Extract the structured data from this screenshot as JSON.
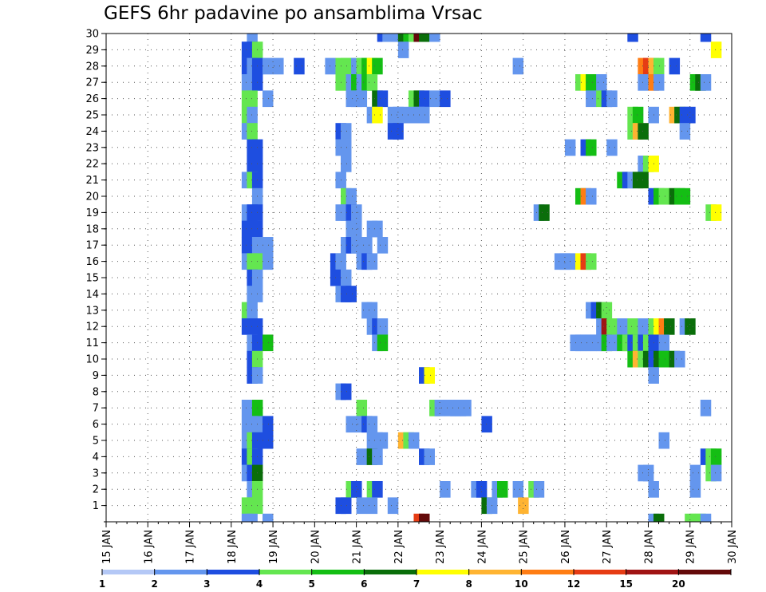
{
  "chart_data": {
    "type": "heatmap",
    "title": "GEFS 6hr padavine po ansamblima Vrsac",
    "xlabel": "",
    "ylabel": "",
    "x_start": "15 JAN",
    "x_end": "30 JAN",
    "x_step": "6 hours",
    "x_tick_labels": [
      "15 JAN",
      "16 JAN",
      "17 JAN",
      "18 JAN",
      "19 JAN",
      "20 JAN",
      "21 JAN",
      "22 JAN",
      "23 JAN",
      "24 JAN",
      "25 JAN",
      "26 JAN",
      "27 JAN",
      "28 JAN",
      "29 JAN",
      "30 JAN"
    ],
    "y_members": [
      0,
      1,
      2,
      3,
      4,
      5,
      6,
      7,
      8,
      9,
      10,
      11,
      12,
      13,
      14,
      15,
      16,
      17,
      18,
      19,
      20,
      21,
      22,
      23,
      24,
      25,
      26,
      27,
      28,
      29,
      30
    ],
    "y_tick_labels": [
      "1",
      "2",
      "3",
      "4",
      "5",
      "6",
      "7",
      "8",
      "9",
      "10",
      "11",
      "12",
      "13",
      "14",
      "15",
      "16",
      "17",
      "18",
      "19",
      "20",
      "21",
      "22",
      "23",
      "24",
      "25",
      "26",
      "27",
      "28",
      "29",
      "30"
    ],
    "grid": true,
    "colorbar": {
      "placement": "bottom",
      "levels": [
        1,
        2,
        3,
        4,
        5,
        6,
        7,
        8,
        10,
        12,
        15,
        20
      ],
      "tick_labels": [
        "1",
        "2",
        "3",
        "4",
        "5",
        "6",
        "7",
        "8",
        "10",
        "12",
        "15",
        "20"
      ],
      "colors": [
        "#b4c8f6",
        "#6496ee",
        "#1e4ee0",
        "#64e650",
        "#14be14",
        "#0a6e0a",
        "#ffff00",
        "#ffb432",
        "#ff7d14",
        "#e63c14",
        "#a01414",
        "#640a0a"
      ]
    },
    "value_unit": "mm / 6hr",
    "cells": [
      [
        30,
        13.5,
        1
      ],
      [
        30,
        26,
        2
      ],
      [
        30,
        26.5,
        1
      ],
      [
        30,
        27,
        1
      ],
      [
        30,
        28,
        5
      ],
      [
        30,
        28.5,
        4
      ],
      [
        30,
        29,
        3
      ],
      [
        30,
        29.5,
        11
      ],
      [
        30,
        30,
        5
      ],
      [
        30,
        31,
        1
      ],
      [
        30,
        50,
        2
      ],
      [
        30,
        57,
        2
      ],
      [
        29,
        13,
        2
      ],
      [
        29,
        13.5,
        2
      ],
      [
        29,
        14,
        3
      ],
      [
        29,
        28,
        1
      ],
      [
        29,
        58,
        6
      ],
      [
        28,
        13,
        2
      ],
      [
        28,
        13.5,
        1
      ],
      [
        28,
        14,
        2
      ],
      [
        28,
        15,
        1
      ],
      [
        28,
        16,
        1
      ],
      [
        28,
        18,
        2
      ],
      [
        28,
        21,
        1
      ],
      [
        28,
        22,
        3
      ],
      [
        28,
        22.5,
        3
      ],
      [
        28,
        23,
        3
      ],
      [
        28,
        23.5,
        1
      ],
      [
        28,
        24,
        3
      ],
      [
        28,
        24.5,
        4
      ],
      [
        28,
        25,
        6
      ],
      [
        28,
        25.5,
        4
      ],
      [
        28,
        39,
        1
      ],
      [
        28,
        51,
        8
      ],
      [
        28,
        51.5,
        9
      ],
      [
        28,
        52,
        7
      ],
      [
        28,
        52.5,
        3
      ],
      [
        28,
        54,
        2
      ],
      [
        27,
        13,
        1
      ],
      [
        27,
        13.5,
        1
      ],
      [
        27,
        14,
        2
      ],
      [
        27,
        22,
        3
      ],
      [
        27,
        23,
        1
      ],
      [
        27,
        23.5,
        4
      ],
      [
        27,
        24,
        1
      ],
      [
        27,
        24.5,
        4
      ],
      [
        27,
        25,
        3
      ],
      [
        27,
        45,
        3
      ],
      [
        27,
        45.5,
        6
      ],
      [
        27,
        46,
        4
      ],
      [
        27,
        47,
        1
      ],
      [
        27,
        51,
        1
      ],
      [
        27,
        52,
        8
      ],
      [
        27,
        52.5,
        1
      ],
      [
        27,
        56,
        4
      ],
      [
        27,
        56.5,
        5
      ],
      [
        27,
        57,
        1
      ],
      [
        26,
        13,
        3
      ],
      [
        26,
        13.5,
        3
      ],
      [
        26,
        15,
        1
      ],
      [
        26,
        23,
        1
      ],
      [
        26,
        23.5,
        1
      ],
      [
        26,
        24,
        1
      ],
      [
        26,
        25.5,
        5
      ],
      [
        26,
        26,
        2
      ],
      [
        26,
        29,
        3
      ],
      [
        26,
        29.5,
        5
      ],
      [
        26,
        30,
        2
      ],
      [
        26,
        31,
        1
      ],
      [
        26,
        32,
        2
      ],
      [
        26,
        46,
        1
      ],
      [
        26,
        47,
        3
      ],
      [
        26,
        47.5,
        2
      ],
      [
        26,
        48,
        1
      ],
      [
        25,
        13,
        3
      ],
      [
        25,
        13.5,
        1
      ],
      [
        25,
        25,
        1
      ],
      [
        25,
        25.5,
        6
      ],
      [
        25,
        27,
        1
      ],
      [
        25,
        27.5,
        1
      ],
      [
        25,
        28,
        1
      ],
      [
        25,
        29,
        1
      ],
      [
        25,
        29.5,
        1
      ],
      [
        25,
        30,
        1
      ],
      [
        25,
        50,
        3
      ],
      [
        25,
        50.5,
        4
      ],
      [
        25,
        52,
        1
      ],
      [
        25,
        54,
        7
      ],
      [
        25,
        54.5,
        5
      ],
      [
        25,
        55,
        2
      ],
      [
        25,
        55.5,
        2
      ],
      [
        24,
        13,
        1
      ],
      [
        24,
        13.5,
        3
      ],
      [
        24,
        22,
        2
      ],
      [
        24,
        22.5,
        1
      ],
      [
        24,
        27,
        2
      ],
      [
        24,
        27.5,
        2
      ],
      [
        24,
        50,
        3
      ],
      [
        24,
        50.5,
        7
      ],
      [
        24,
        51,
        5
      ],
      [
        24,
        55,
        1
      ],
      [
        23,
        13.5,
        2
      ],
      [
        23,
        14,
        2
      ],
      [
        23,
        22,
        1
      ],
      [
        23,
        22.5,
        1
      ],
      [
        23,
        44,
        1
      ],
      [
        23,
        45.5,
        2
      ],
      [
        23,
        46,
        4
      ],
      [
        23,
        48,
        1
      ],
      [
        22,
        13.5,
        2
      ],
      [
        22,
        14,
        2
      ],
      [
        22,
        22.5,
        1
      ],
      [
        22,
        51,
        1
      ],
      [
        22,
        51.5,
        3
      ],
      [
        22,
        52,
        6
      ],
      [
        21,
        13,
        1
      ],
      [
        21,
        13.5,
        3
      ],
      [
        21,
        14,
        2
      ],
      [
        21,
        22,
        1
      ],
      [
        21,
        49,
        4
      ],
      [
        21,
        49.5,
        2
      ],
      [
        21,
        50,
        1
      ],
      [
        21,
        50.5,
        5
      ],
      [
        21,
        51,
        5
      ],
      [
        20,
        14,
        1
      ],
      [
        20,
        22.5,
        3
      ],
      [
        20,
        23,
        1
      ],
      [
        20,
        45,
        4
      ],
      [
        20,
        45.5,
        8
      ],
      [
        20,
        46,
        1
      ],
      [
        20,
        52,
        2
      ],
      [
        20,
        52.5,
        4
      ],
      [
        20,
        53,
        3
      ],
      [
        20,
        53.5,
        3
      ],
      [
        20,
        54,
        5
      ],
      [
        20,
        54.5,
        4
      ],
      [
        20,
        55,
        4
      ],
      [
        19,
        13,
        1
      ],
      [
        19,
        13.5,
        2
      ],
      [
        19,
        14,
        2
      ],
      [
        19,
        22,
        1
      ],
      [
        19,
        22.5,
        1
      ],
      [
        19,
        23,
        2
      ],
      [
        19,
        23.5,
        1
      ],
      [
        19,
        41,
        1
      ],
      [
        19,
        41.5,
        5
      ],
      [
        19,
        57.5,
        3
      ],
      [
        19,
        58,
        6
      ],
      [
        18,
        13,
        2
      ],
      [
        18,
        13.5,
        2
      ],
      [
        18,
        14,
        2
      ],
      [
        18,
        23,
        1
      ],
      [
        18,
        23.5,
        1
      ],
      [
        18,
        25,
        1
      ],
      [
        18,
        25.5,
        1
      ],
      [
        17,
        13,
        2
      ],
      [
        17,
        13.5,
        2
      ],
      [
        17,
        14,
        1
      ],
      [
        17,
        15,
        1
      ],
      [
        17,
        22.5,
        1
      ],
      [
        17,
        23,
        2
      ],
      [
        17,
        23.5,
        1
      ],
      [
        17,
        24,
        1
      ],
      [
        17,
        24.5,
        1
      ],
      [
        17,
        26,
        1
      ],
      [
        16,
        13,
        1
      ],
      [
        16,
        13.5,
        3
      ],
      [
        16,
        14,
        3
      ],
      [
        16,
        15,
        1
      ],
      [
        16,
        21.5,
        2
      ],
      [
        16,
        22,
        1
      ],
      [
        16,
        24,
        1
      ],
      [
        16,
        24.5,
        2
      ],
      [
        16,
        25,
        1
      ],
      [
        16,
        43,
        1
      ],
      [
        16,
        43.5,
        1
      ],
      [
        16,
        44,
        1
      ],
      [
        16,
        45,
        6
      ],
      [
        16,
        45.5,
        9
      ],
      [
        16,
        46,
        3
      ],
      [
        15,
        13.5,
        2
      ],
      [
        15,
        14,
        1
      ],
      [
        15,
        21.5,
        2
      ],
      [
        15,
        22.5,
        1
      ],
      [
        14,
        13.5,
        1
      ],
      [
        14,
        14,
        1
      ],
      [
        14,
        22,
        1
      ],
      [
        14,
        22.5,
        2
      ],
      [
        14,
        23,
        2
      ],
      [
        13,
        13,
        3
      ],
      [
        13,
        13.5,
        1
      ],
      [
        13,
        24.5,
        1
      ],
      [
        13,
        25,
        1
      ],
      [
        13,
        46,
        1
      ],
      [
        13,
        46.5,
        2
      ],
      [
        13,
        47,
        5
      ],
      [
        13,
        47.5,
        3
      ],
      [
        12,
        13,
        2
      ],
      [
        12,
        13.5,
        2
      ],
      [
        12,
        14,
        2
      ],
      [
        12,
        25,
        1
      ],
      [
        12,
        25.5,
        2
      ],
      [
        12,
        26,
        1
      ],
      [
        12,
        47,
        1
      ],
      [
        12,
        47.5,
        10
      ],
      [
        12,
        48,
        3
      ],
      [
        12,
        49,
        1
      ],
      [
        12,
        50,
        3
      ],
      [
        12,
        50.5,
        3
      ],
      [
        12,
        51,
        1
      ],
      [
        12,
        52,
        3
      ],
      [
        12,
        52.5,
        6
      ],
      [
        12,
        53,
        8
      ],
      [
        12,
        53.5,
        5
      ],
      [
        12,
        55,
        1
      ],
      [
        12,
        55.5,
        5
      ],
      [
        11,
        13.5,
        1
      ],
      [
        11,
        14,
        2
      ],
      [
        11,
        15,
        4
      ],
      [
        11,
        25.5,
        1
      ],
      [
        11,
        26,
        4
      ],
      [
        11,
        44.5,
        1
      ],
      [
        11,
        45,
        1
      ],
      [
        11,
        45.5,
        1
      ],
      [
        11,
        46,
        1
      ],
      [
        11,
        46.5,
        1
      ],
      [
        11,
        47,
        1
      ],
      [
        11,
        47.5,
        4
      ],
      [
        11,
        48,
        1
      ],
      [
        11,
        49,
        4
      ],
      [
        11,
        49.5,
        3
      ],
      [
        11,
        50,
        2
      ],
      [
        11,
        50.5,
        3
      ],
      [
        11,
        51,
        2
      ],
      [
        11,
        51.5,
        3
      ],
      [
        11,
        52,
        2
      ],
      [
        11,
        53,
        1
      ],
      [
        10,
        13.5,
        2
      ],
      [
        10,
        14,
        3
      ],
      [
        10,
        50,
        4
      ],
      [
        10,
        50.5,
        7
      ],
      [
        10,
        51,
        3
      ],
      [
        10,
        51.5,
        5
      ],
      [
        10,
        52,
        2
      ],
      [
        10,
        52.5,
        5
      ],
      [
        10,
        53,
        4
      ],
      [
        10,
        53.5,
        4
      ],
      [
        10,
        54,
        5
      ],
      [
        10,
        54.5,
        1
      ],
      [
        9,
        13.5,
        2
      ],
      [
        9,
        14,
        1
      ],
      [
        9,
        30,
        2
      ],
      [
        9,
        30.5,
        6
      ],
      [
        9,
        52,
        1
      ],
      [
        8,
        22,
        1
      ],
      [
        8,
        22.5,
        2
      ],
      [
        7,
        13,
        1
      ],
      [
        7,
        13.5,
        1
      ],
      [
        7,
        14,
        4
      ],
      [
        7,
        24,
        3
      ],
      [
        7,
        31,
        3
      ],
      [
        7,
        31.5,
        1
      ],
      [
        7,
        32.5,
        1
      ],
      [
        7,
        33,
        1
      ],
      [
        7,
        33.5,
        1
      ],
      [
        7,
        34,
        1
      ],
      [
        7,
        57,
        1
      ],
      [
        6,
        13,
        1
      ],
      [
        6,
        13.5,
        1
      ],
      [
        6,
        14,
        1
      ],
      [
        6,
        15,
        2
      ],
      [
        6,
        23,
        1
      ],
      [
        6,
        24,
        1
      ],
      [
        6,
        24.5,
        2
      ],
      [
        6,
        25,
        1
      ],
      [
        6,
        36,
        2
      ],
      [
        5,
        13,
        1
      ],
      [
        5,
        13.5,
        3
      ],
      [
        5,
        14,
        2
      ],
      [
        5,
        15,
        2
      ],
      [
        5,
        25,
        1
      ],
      [
        5,
        25.5,
        1
      ],
      [
        5,
        26,
        1
      ],
      [
        5,
        28,
        7
      ],
      [
        5,
        28.5,
        3
      ],
      [
        5,
        29,
        1
      ],
      [
        5,
        53,
        1
      ],
      [
        4,
        13,
        2
      ],
      [
        4,
        13.5,
        3
      ],
      [
        4,
        14,
        2
      ],
      [
        4,
        24,
        1
      ],
      [
        4,
        25,
        5
      ],
      [
        4,
        25.5,
        1
      ],
      [
        4,
        30,
        2
      ],
      [
        4,
        30.5,
        1
      ],
      [
        4,
        57,
        2
      ],
      [
        4,
        57.5,
        3
      ],
      [
        4,
        58,
        4
      ],
      [
        3,
        13,
        1
      ],
      [
        3,
        13.5,
        2
      ],
      [
        3,
        14,
        5
      ],
      [
        3,
        51,
        1
      ],
      [
        3,
        51.5,
        1
      ],
      [
        3,
        56,
        1
      ],
      [
        3,
        57.5,
        3
      ],
      [
        3,
        58,
        1
      ],
      [
        2,
        13.5,
        1
      ],
      [
        2,
        14,
        3
      ],
      [
        2,
        23,
        3
      ],
      [
        2,
        23.5,
        2
      ],
      [
        2,
        25,
        3
      ],
      [
        2,
        25.5,
        2
      ],
      [
        2,
        32,
        1
      ],
      [
        2,
        35,
        1
      ],
      [
        2,
        35.5,
        2
      ],
      [
        2,
        37,
        1
      ],
      [
        2,
        37.5,
        4
      ],
      [
        2,
        39,
        1
      ],
      [
        2,
        40.5,
        3
      ],
      [
        2,
        41,
        1
      ],
      [
        2,
        52,
        1
      ],
      [
        2,
        56,
        1
      ],
      [
        1,
        13,
        3
      ],
      [
        1,
        13.5,
        3
      ],
      [
        1,
        14,
        3
      ],
      [
        1,
        22,
        2
      ],
      [
        1,
        22.5,
        2
      ],
      [
        1,
        24,
        1
      ],
      [
        1,
        25,
        1
      ],
      [
        1,
        27,
        1
      ],
      [
        1,
        36,
        5
      ],
      [
        1,
        36.5,
        1
      ],
      [
        1,
        39.5,
        7
      ],
      [
        0,
        13,
        1
      ],
      [
        0,
        13.5,
        1
      ],
      [
        0,
        15,
        1
      ],
      [
        0,
        29.5,
        9
      ],
      [
        0,
        30,
        11
      ],
      [
        0,
        52,
        1
      ],
      [
        0,
        52.5,
        5
      ],
      [
        0,
        55.5,
        3
      ],
      [
        0,
        56,
        3
      ],
      [
        0,
        56.5,
        3
      ],
      [
        0,
        57,
        1
      ]
    ]
  }
}
